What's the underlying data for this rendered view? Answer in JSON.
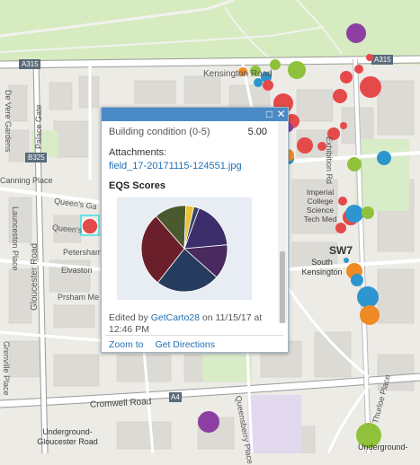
{
  "popup": {
    "field_label": "Building condition (0-5)",
    "field_value": "5.00",
    "attachments_label": "Attachments:",
    "attachment_link": "field_17-20171115-124551.jpg",
    "chart_title": "EQS Scores",
    "edited_prefix": "Edited by",
    "edited_user": "GetCarto28",
    "edited_suffix": "on 11/15/17 at 12:46 PM",
    "zoom_to": "Zoom to",
    "get_directions": "Get Directions",
    "colors": {
      "header": "#4a8ac6",
      "link": "#1f6fb5"
    }
  },
  "map": {
    "labels": {
      "a315_left": "A315",
      "a315_right": "A315",
      "kensington_road": "Kensington Road",
      "de_vere_gardens": "De Vere Gardens",
      "palace_gate": "Palace Gate",
      "b325": "B325",
      "canning_place": "Canning Place",
      "queens_gate_1": "Queen's Ga",
      "queens_gate_2": "Queen's",
      "launceston_place": "Launceston Place",
      "gloucester_road": "Gloucester Road",
      "petersham": "Petersham",
      "elvaston": "Elvaston",
      "prsham_me": "Prsham Me",
      "imperial_college": "Imperial College Science Tech Med",
      "exhibition_rd": "Exhibition Rd",
      "sw7": "SW7",
      "south_kensington": "South Kensington",
      "a4": "A4",
      "cromwell_road": "Cromwell Road",
      "grenville_place": "Grenville Place",
      "queensberry_place": "Queensberry Place",
      "thurloe_place": "Thurloe Place",
      "underground_gloucester": "Underground-Gloucester Road",
      "underground_right": "Underground-"
    }
  },
  "chart_data": {
    "type": "pie",
    "title": "",
    "slices": [
      {
        "value": 18,
        "color": "#3b2e6b"
      },
      {
        "value": 13,
        "color": "#4a2a5e"
      },
      {
        "value": 24,
        "color": "#263c5e"
      },
      {
        "value": 28,
        "color": "#6b1f2a"
      },
      {
        "value": 12,
        "color": "#4a5a2e"
      },
      {
        "value": 3,
        "color": "#e8c13a"
      },
      {
        "value": 2,
        "color": "#3a4468"
      }
    ]
  }
}
